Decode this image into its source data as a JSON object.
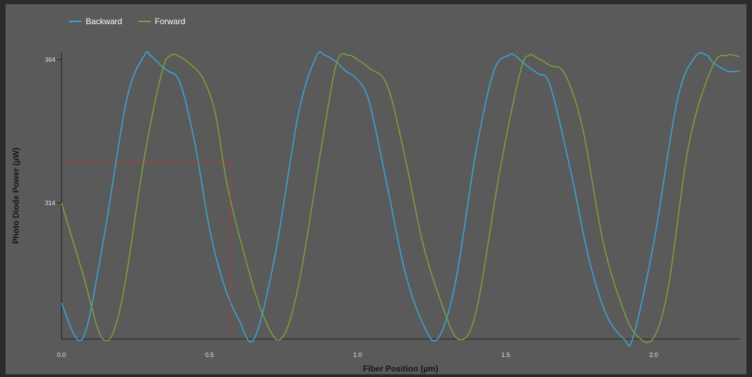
{
  "chart_data": {
    "type": "line",
    "xlabel": "Fiber Position (µm)",
    "ylabel": "Photo Diode Power (µW)",
    "xlim": [
      0.0,
      2.29
    ],
    "ylim": [
      266.5,
      366.5
    ],
    "x_ticks": [
      0.0,
      0.5,
      1.0,
      1.5,
      2.0
    ],
    "x_tick_labels": [
      "0.0",
      "0.5",
      "1.0",
      "1.5",
      "2.0"
    ],
    "y_ticks": [
      314,
      364
    ],
    "y_tick_labels": [
      "314",
      "364"
    ],
    "grid": false,
    "legend_position": "top-left",
    "series": [
      {
        "name": "Backward",
        "color": "#3aa6dc",
        "x": [
          0.0,
          0.07,
          0.14,
          0.22,
          0.28,
          0.3,
          0.34,
          0.36,
          0.4,
          0.45,
          0.5,
          0.55,
          0.6,
          0.65,
          0.72,
          0.8,
          0.86,
          0.89,
          0.93,
          0.96,
          1.0,
          1.04,
          1.1,
          1.16,
          1.22,
          1.27,
          1.33,
          1.4,
          1.46,
          1.51,
          1.53,
          1.57,
          1.61,
          1.65,
          1.72,
          1.78,
          1.84,
          1.9,
          1.93,
          2.0,
          2.08,
          2.14,
          2.18,
          2.2,
          2.25,
          2.29
        ],
        "y": [
          279,
          266.5,
          300,
          350,
          365.5,
          365.5,
          361.5,
          360,
          356,
          335,
          305,
          285,
          273,
          266.5,
          295,
          345,
          365,
          365.5,
          363,
          360,
          357,
          349,
          320,
          290,
          272,
          266.5,
          286,
          332,
          360,
          365.5,
          365.5,
          362,
          359,
          355,
          325,
          295,
          275,
          266.5,
          267,
          300,
          350,
          365,
          365.5,
          363,
          360,
          360
        ]
      },
      {
        "name": "Forward",
        "color": "#7aa43a",
        "x": [
          0.0,
          0.07,
          0.14,
          0.2,
          0.28,
          0.34,
          0.37,
          0.4,
          0.44,
          0.48,
          0.52,
          0.56,
          0.62,
          0.68,
          0.74,
          0.8,
          0.88,
          0.93,
          0.97,
          1.0,
          1.04,
          1.1,
          1.16,
          1.22,
          1.28,
          1.34,
          1.4,
          1.48,
          1.55,
          1.58,
          1.6,
          1.65,
          1.7,
          1.76,
          1.83,
          1.9,
          1.95,
          2.0,
          2.05,
          2.12,
          2.2,
          2.25,
          2.27,
          2.29
        ],
        "y": [
          314,
          290,
          266.5,
          278,
          330,
          360,
          365.5,
          365,
          362,
          357,
          345,
          320,
          295,
          275,
          266.5,
          285,
          335,
          363,
          365.5,
          364,
          361,
          355,
          330,
          300,
          280,
          266.5,
          276,
          325,
          360,
          365.5,
          365,
          362,
          359,
          340,
          300,
          276,
          267,
          267,
          285,
          335,
          362,
          365.5,
          365.5,
          365
        ]
      },
      {
        "name": "",
        "color": "#ff2020",
        "style": "dotted",
        "x": [
          0.0,
          0.57,
          0.57
        ],
        "y": [
          328,
          328,
          266.5
        ]
      }
    ]
  }
}
